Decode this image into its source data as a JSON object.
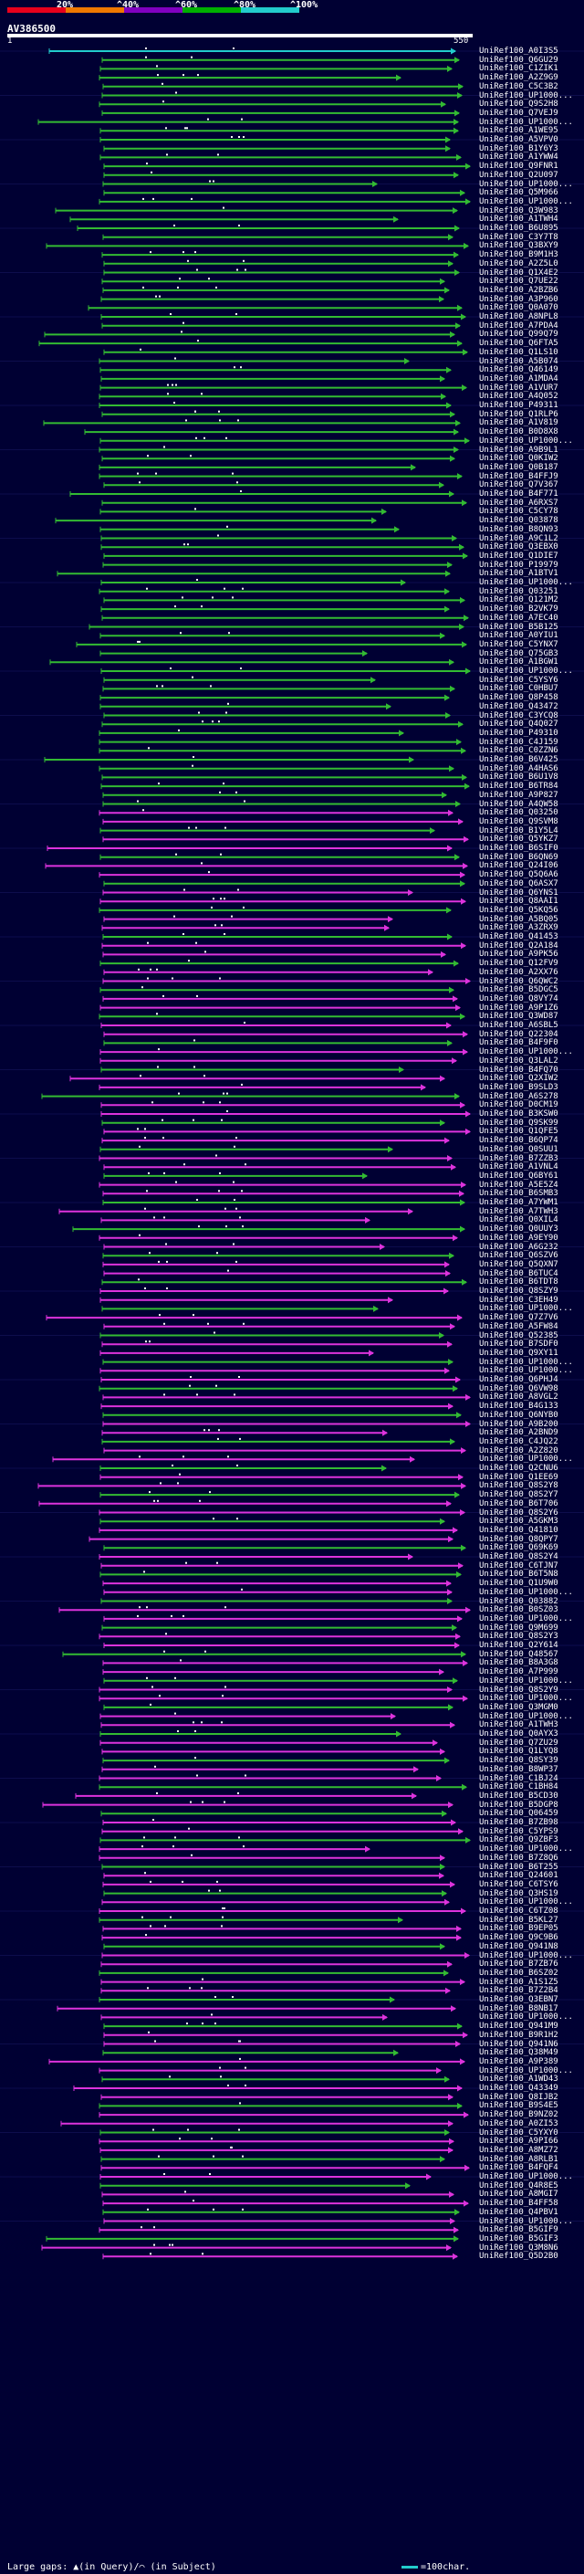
{
  "scale": {
    "labels": [
      "20%",
      "^40%",
      "^60%",
      "^80%",
      "^100%"
    ],
    "colors": [
      "#e8001c",
      "#f07800",
      "#8000c0",
      "#00b000",
      "#22cccc"
    ]
  },
  "query": {
    "name": "AV386500",
    "start": "1",
    "end": "550"
  },
  "legend": {
    "left": "Large gaps: ▲(in Query)/⌒ (in Subject)",
    "right": "=100char."
  },
  "colors": {
    "background": "#000033",
    "green": "#33bb33",
    "magenta": "#dd33dd",
    "cyan": "#22cccc",
    "white": "#ffffff"
  },
  "hits": [
    "UniRef100_A0I3S5",
    "UniRef100_Q6GU29",
    "UniRef100_C1ZIK1",
    "UniRef100_A2Z9G9",
    "UniRef100_C5C3B2",
    "UniRef100_UP1000...",
    "UniRef100_Q9S2H8",
    "UniRef100_Q7VEJ9",
    "UniRef100_UP1000...",
    "UniRef100_A1WE95",
    "UniRef100_A5VPV0",
    "UniRef100_B1Y6Y3",
    "UniRef100_A1YWW4",
    "UniRef100_Q9FNR1",
    "UniRef100_Q2U097",
    "UniRef100_UP1000...",
    "UniRef100_Q5M966",
    "UniRef100_UP1000...",
    "UniRef100_Q3W983",
    "UniRef100_A1TWH4",
    "UniRef100_B6U895",
    "UniRef100_C3Y7T8",
    "UniRef100_Q3BXY9",
    "UniRef100_B9M1H3",
    "UniRef100_A2Z5L0",
    "UniRef100_Q1X4E2",
    "UniRef100_Q7UE22",
    "UniRef100_A2BZB6",
    "UniRef100_A3P960",
    "UniRef100_Q0A070",
    "UniRef100_A8NPL8",
    "UniRef100_A7PDA4",
    "UniRef100_Q99Q79",
    "UniRef100_Q6FTA5",
    "UniRef100_Q1LS10",
    "UniRef100_A5B074",
    "UniRef100_Q46149",
    "UniRef100_A1MDA4",
    "UniRef100_A1VUR7",
    "UniRef100_A4Q052",
    "UniRef100_P49311",
    "UniRef100_Q1RLP6",
    "UniRef100_A1V819",
    "UniRef100_B0D8X8",
    "UniRef100_UP1000...",
    "UniRef100_A9B9L1",
    "UniRef100_Q0KIW2",
    "UniRef100_Q0B187",
    "UniRef100_B4FFJ9",
    "UniRef100_Q7V367",
    "UniRef100_B4F771",
    "UniRef100_A6RXS7",
    "UniRef100_C5CY78",
    "UniRef100_Q03878",
    "UniRef100_B8QN93",
    "UniRef100_A9C1L2",
    "UniRef100_Q3EBX0",
    "UniRef100_Q1DIE7",
    "UniRef100_P19979",
    "UniRef100_A1BTV1",
    "UniRef100_UP1000...",
    "UniRef100_Q03251",
    "UniRef100_Q121M2",
    "UniRef100_B2VK79",
    "UniRef100_A7EC40",
    "UniRef100_B5B125",
    "UniRef100_A0YIU1",
    "UniRef100_C5YNX7",
    "UniRef100_Q75GB3",
    "UniRef100_A1BGW1",
    "UniRef100_UP1000...",
    "UniRef100_C5YSY6",
    "UniRef100_C0HBU7",
    "UniRef100_Q8P458",
    "UniRef100_Q43472",
    "UniRef100_C3YCQ8",
    "UniRef100_Q4Q027",
    "UniRef100_P49310",
    "UniRef100_C4J159",
    "UniRef100_C0ZZN6",
    "UniRef100_B6V425",
    "UniRef100_A4HAS6",
    "UniRef100_B6U1V8",
    "UniRef100_B6TR84",
    "UniRef100_A9P827",
    "UniRef100_A4QW58",
    "UniRef100_Q03250",
    "UniRef100_Q9SVM8",
    "UniRef100_B1Y5L4",
    "UniRef100_Q5YKZ7",
    "UniRef100_B6SIF0",
    "UniRef100_B6QN69",
    "UniRef100_Q24I06",
    "UniRef100_Q5Q6A6",
    "UniRef100_Q6ASX7",
    "UniRef100_Q6YNS1",
    "UniRef100_Q8AAI1",
    "UniRef100_Q5KQ56",
    "UniRef100_A5BQ05",
    "UniRef100_A3ZRX9",
    "UniRef100_Q41453",
    "UniRef100_Q2A184",
    "UniRef100_A9PK56",
    "UniRef100_Q12FV9",
    "UniRef100_A2XX76",
    "UniRef100_Q6QWC2",
    "UniRef100_B5DGC5",
    "UniRef100_Q8VY74",
    "UniRef100_A9P1Z6",
    "UniRef100_Q3WD87",
    "UniRef100_A6SBL5",
    "UniRef100_Q22304",
    "UniRef100_B4F9F0",
    "UniRef100_UP1000...",
    "UniRef100_Q3LAL2",
    "UniRef100_B4FQ70",
    "UniRef100_Q2XIW2",
    "UniRef100_B9SLD3",
    "UniRef100_A6S278",
    "UniRef100_D0CM19",
    "UniRef100_B3KSW0",
    "UniRef100_Q9SK99",
    "UniRef100_Q1QFE5",
    "UniRef100_B6QP74",
    "UniRef100_Q0SUU1",
    "UniRef100_B7ZZB3",
    "UniRef100_A1VNL4",
    "UniRef100_Q6BY61",
    "UniRef100_A5E5Z4",
    "UniRef100_B6SMB3",
    "UniRef100_A7YWM1",
    "UniRef100_A7TWH3",
    "UniRef100_Q0XIL4",
    "UniRef100_Q0UUY3",
    "UniRef100_A9EY90",
    "UniRef100_A6G232",
    "UniRef100_Q6SZV6",
    "UniRef100_Q5QXN7",
    "UniRef100_B6TUC4",
    "UniRef100_B6TDT8",
    "UniRef100_Q8SZY9",
    "UniRef100_C3EH49",
    "UniRef100_UP1000...",
    "UniRef100_Q7Z7V6",
    "UniRef100_A5FW84",
    "UniRef100_Q52385",
    "UniRef100_B7SDF0",
    "UniRef100_Q9XY11",
    "UniRef100_UP1000...",
    "UniRef100_UP1000...",
    "UniRef100_Q6PHJ4",
    "UniRef100_Q6VW98",
    "UniRef100_A8VGL2",
    "UniRef100_B4G133",
    "UniRef100_Q6NYB0",
    "UniRef100_A9B200",
    "UniRef100_A2BND9",
    "UniRef100_C4JQ22",
    "UniRef100_A2Z820",
    "UniRef100_UP1000...",
    "UniRef100_Q2CNU6",
    "UniRef100_Q1EE69",
    "UniRef100_Q8S2Y8",
    "UniRef100_Q8S2Y7",
    "UniRef100_B6T706",
    "UniRef100_Q8S2Y6",
    "UniRef100_A5GKM3",
    "UniRef100_Q41810",
    "UniRef100_Q8QPY7",
    "UniRef100_Q69K69",
    "UniRef100_Q8S2Y4",
    "UniRef100_C6TJN7",
    "UniRef100_B6T5N8",
    "UniRef100_Q1U9W0",
    "UniRef100_UP1000...",
    "UniRef100_Q03882",
    "UniRef100_B0SZ03",
    "UniRef100_UP1000...",
    "UniRef100_Q9M699",
    "UniRef100_Q8S2Y3",
    "UniRef100_Q2Y614",
    "UniRef100_Q48567",
    "UniRef100_B8A3G8",
    "UniRef100_A7P999",
    "UniRef100_UP1000...",
    "UniRef100_Q8S2Y9",
    "UniRef100_UP1000...",
    "UniRef100_Q3MGM0",
    "UniRef100_UP1000...",
    "UniRef100_A1TWH3",
    "UniRef100_Q0AYX3",
    "UniRef100_Q7ZU29",
    "UniRef100_Q1LYQ8",
    "UniRef100_Q8SY39",
    "UniRef100_B8WP37",
    "UniRef100_C1BJ24",
    "UniRef100_C1BH84",
    "UniRef100_B5CD30",
    "UniRef100_B5DGP8",
    "UniRef100_Q06459",
    "UniRef100_B7ZB98",
    "UniRef100_C5YPS9",
    "UniRef100_Q9ZBF3",
    "UniRef100_UP1000...",
    "UniRef100_B7Z8Q6",
    "UniRef100_B6T255",
    "UniRef100_Q24601",
    "UniRef100_C6TSY6",
    "UniRef100_Q3HS19",
    "UniRef100_UP1000...",
    "UniRef100_C6TZ08",
    "UniRef100_B5KL27",
    "UniRef100_B9EP05",
    "UniRef100_Q9C9B6",
    "UniRef100_Q941N8",
    "UniRef100_UP1000...",
    "UniRef100_B7ZB76",
    "UniRef100_B6SZ02",
    "UniRef100_A1S1Z5",
    "UniRef100_B7Z2B4",
    "UniRef100_Q3EBN7",
    "UniRef100_B8NB17",
    "UniRef100_UP1000...",
    "UniRef100_Q941M9",
    "UniRef100_B9R1H2",
    "UniRef100_Q941N6",
    "UniRef100_Q38M49",
    "UniRef100_A9P389",
    "UniRef100_UP1000...",
    "UniRef100_A1WD43",
    "UniRef100_Q43349",
    "UniRef100_Q8IJB2",
    "UniRef100_B9S4E5",
    "UniRef100_B9NZ02",
    "UniRef100_A0ZI53",
    "UniRef100_C5YXY0",
    "UniRef100_A9PI66",
    "UniRef100_A8MZ72",
    "UniRef100_A8RLB1",
    "UniRef100_B4FQF4",
    "UniRef100_UP1000...",
    "UniRef100_Q4R8E5",
    "UniRef100_A8MGI7",
    "UniRef100_B4FF58",
    "UniRef100_Q4PBV1",
    "UniRef100_UP1000...",
    "UniRef100_B5GIF9",
    "UniRef100_B5GIF3",
    "UniRef100_Q3M8N6",
    "UniRef100_Q5D2B0"
  ]
}
